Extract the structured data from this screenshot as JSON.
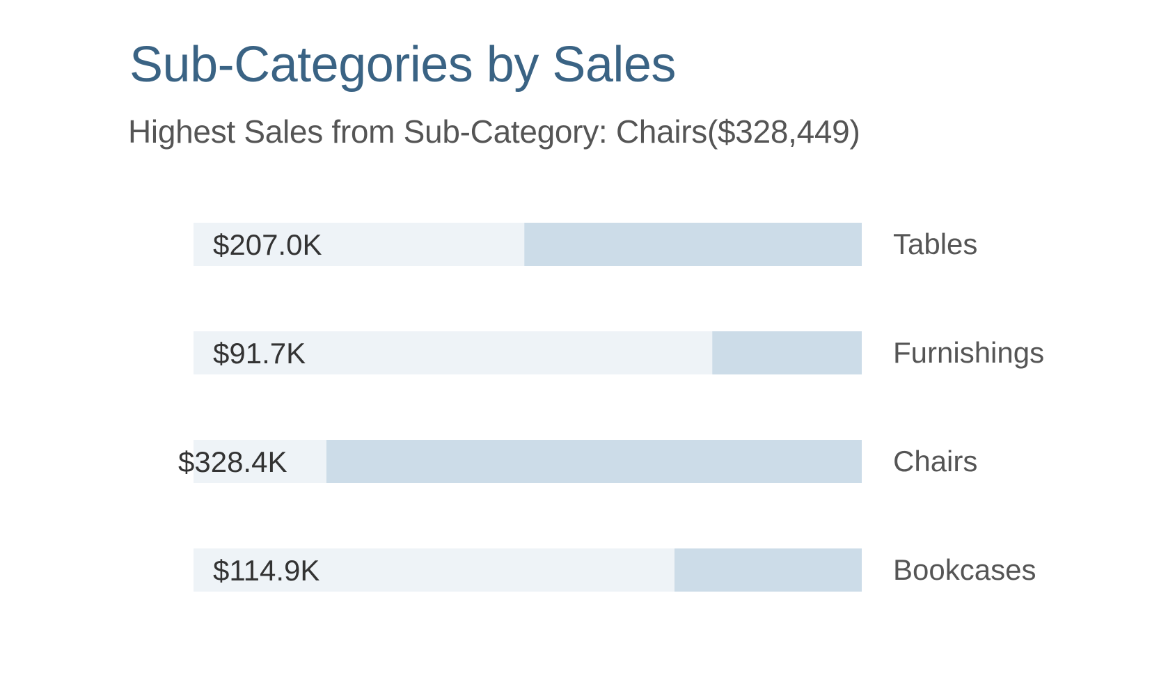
{
  "header": {
    "title": "Sub-Categories by Sales",
    "subtitle": "Highest Sales from Sub-Category: Chairs($328,449)"
  },
  "chart_data": {
    "type": "bar",
    "orientation": "horizontal",
    "direction": "right-to-left",
    "categories": [
      "Tables",
      "Furnishings",
      "Chairs",
      "Bookcases"
    ],
    "values": [
      207000,
      91700,
      328449,
      114900
    ],
    "value_labels": [
      "$207.0K",
      "$91.7K",
      "$328.4K",
      "$114.9K"
    ],
    "xlim": [
      0,
      410000
    ],
    "grid": false,
    "legend": "none",
    "colors": {
      "track": "#eef3f7",
      "bar": "#ccdce8",
      "title": "#3a6384",
      "text": "#555555"
    }
  }
}
